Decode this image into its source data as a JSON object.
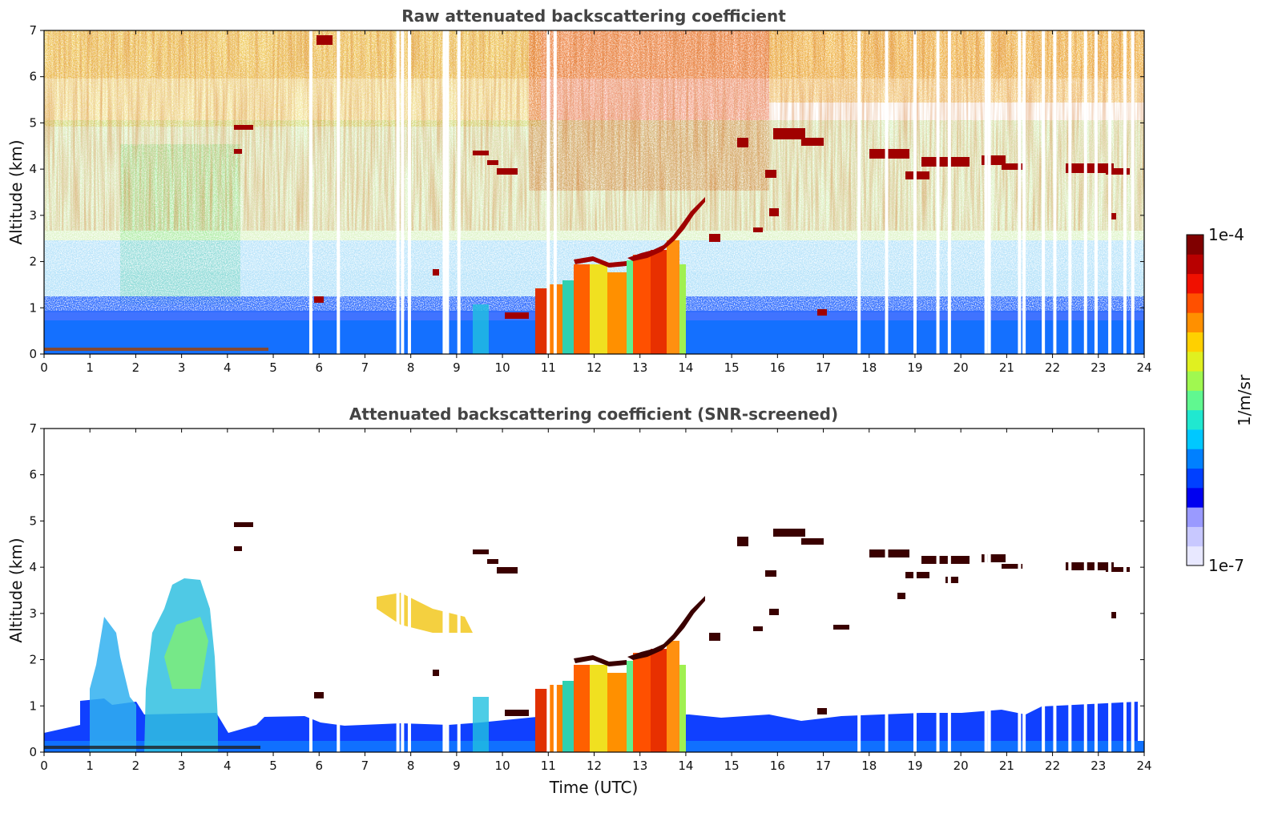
{
  "chart_data": [
    {
      "type": "heatmap",
      "title": "Raw attenuated backscattering coefficient",
      "xlabel": "",
      "ylabel": "Altitude (km)",
      "xlim": [
        0,
        24
      ],
      "ylim": [
        0,
        7
      ],
      "xticks": [
        "0",
        "1",
        "2",
        "3",
        "4",
        "5",
        "6",
        "7",
        "8",
        "9",
        "10",
        "11",
        "12",
        "13",
        "14",
        "15",
        "16",
        "17",
        "18",
        "19",
        "20",
        "21",
        "22",
        "23",
        "24"
      ],
      "yticks": [
        "0",
        "1",
        "2",
        "3",
        "4",
        "5",
        "6",
        "7"
      ],
      "missing_profiles_utc": [
        5.82,
        6.42,
        7.72,
        7.82,
        7.97,
        8.73,
        8.8,
        9.05,
        11.0,
        11.15,
        17.78,
        18.38,
        19.0,
        19.5,
        19.75,
        20.55,
        20.62,
        21.28,
        21.38,
        21.8,
        22.05,
        22.38,
        22.72,
        22.95,
        23.25,
        23.58,
        23.75
      ],
      "features": [
        {
          "name": "near-surface aerosol layer",
          "x_range": [
            0,
            24
          ],
          "top_km": 0.6
        },
        {
          "name": "boundary layer clouds / precipitation",
          "x_range": [
            10.7,
            14.0
          ],
          "top_km": 2.0
        },
        {
          "name": "rising cloud base",
          "points": [
            [
              12.8,
              2.1
            ],
            [
              13.4,
              2.3
            ],
            [
              13.8,
              2.7
            ],
            [
              14.2,
              3.2
            ],
            [
              14.5,
              3.35
            ]
          ]
        },
        {
          "name": "mid-level cloud",
          "x_range": [
            15.8,
            23.8
          ],
          "altitude_km": 4.1
        },
        {
          "name": "elevated aerosol",
          "x_range": [
            9.3,
            10.3
          ],
          "altitude_km": 4.2
        }
      ]
    },
    {
      "type": "heatmap",
      "title": "Attenuated backscattering coefficient (SNR-screened)",
      "xlabel": "Time (UTC)",
      "ylabel": "Altitude (km)",
      "xlim": [
        0,
        24
      ],
      "ylim": [
        0,
        7
      ],
      "xticks": [
        "0",
        "1",
        "2",
        "3",
        "4",
        "5",
        "6",
        "7",
        "8",
        "9",
        "10",
        "11",
        "12",
        "13",
        "14",
        "15",
        "16",
        "17",
        "18",
        "19",
        "20",
        "21",
        "22",
        "23",
        "24"
      ],
      "yticks": [
        "0",
        "1",
        "2",
        "3",
        "4",
        "5",
        "6",
        "7"
      ],
      "features": [
        {
          "name": "aerosol plume",
          "x_range": [
            1.1,
            2.2
          ],
          "top_km": 3.2
        },
        {
          "name": "aerosol plume",
          "x_range": [
            2.3,
            3.9
          ],
          "top_km": 3.8
        },
        {
          "name": "boundary layer",
          "x_range": [
            0,
            24
          ],
          "top_km": 0.7
        },
        {
          "name": "boundary layer clouds / precipitation",
          "x_range": [
            10.7,
            14.0
          ],
          "top_km": 2.0
        },
        {
          "name": "mid-level cloud",
          "x_range": [
            15.8,
            23.8
          ],
          "altitude_km": 4.1
        }
      ]
    }
  ],
  "colorbar": {
    "label": "1/m/sr",
    "min_label": "1e-7",
    "max_label": "1e-4",
    "scale": "log",
    "colormap": "jet",
    "colors": [
      "#e8e8ff",
      "#c8c8ff",
      "#9a9aff",
      "#0000f0",
      "#0040ff",
      "#0080ff",
      "#00c8ff",
      "#20e8d0",
      "#60f890",
      "#a0f850",
      "#e0f020",
      "#ffd000",
      "#ff9000",
      "#ff5000",
      "#f01000",
      "#b80000",
      "#800000"
    ]
  }
}
